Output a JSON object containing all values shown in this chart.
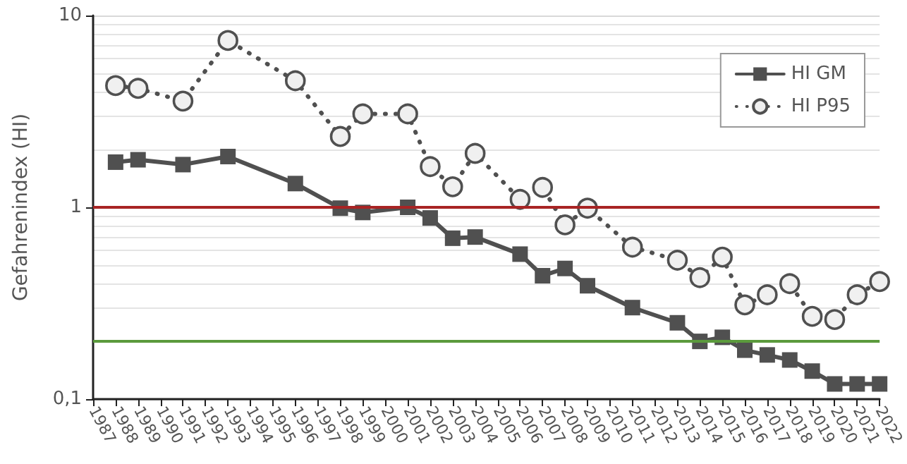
{
  "chart_data": {
    "type": "line",
    "ylabel": "Gefahrenindex (HI)",
    "log": "y",
    "ylim": [
      0.1,
      10
    ],
    "yticks": [
      {
        "value": 0.1,
        "label": "0,1"
      },
      {
        "value": 1,
        "label": "1"
      },
      {
        "value": 10,
        "label": "10"
      }
    ],
    "grid": "y",
    "legend": "top right",
    "categories": [
      "1987",
      "1988",
      "1989",
      "1990",
      "1991",
      "1992",
      "1993",
      "1994",
      "1995",
      "1996",
      "1997",
      "1998",
      "1999",
      "2000",
      "2001",
      "2002",
      "2003",
      "2004",
      "2005",
      "2006",
      "2007",
      "2008",
      "2009",
      "2010",
      "2011",
      "2012",
      "2013",
      "2014",
      "2015",
      "2016",
      "2017",
      "2018",
      "2019",
      "2020",
      "2021",
      "2022"
    ],
    "series": [
      {
        "name": "HI GM",
        "color": "#505050",
        "marker": "square",
        "line_style": "solid",
        "values": [
          null,
          1.72,
          1.77,
          null,
          1.67,
          null,
          1.84,
          null,
          null,
          1.33,
          null,
          0.99,
          0.94,
          null,
          1.0,
          0.88,
          0.69,
          0.7,
          null,
          0.57,
          0.44,
          0.48,
          0.39,
          null,
          0.3,
          null,
          0.25,
          0.2,
          0.21,
          0.18,
          0.17,
          0.16,
          0.14,
          0.12,
          0.12,
          0.12
        ]
      },
      {
        "name": "HI P95",
        "color": "#505050",
        "marker": "circle",
        "line_style": "dotted",
        "values": [
          null,
          4.31,
          4.17,
          null,
          3.58,
          null,
          7.41,
          null,
          null,
          4.57,
          null,
          2.34,
          3.07,
          null,
          3.07,
          1.63,
          1.28,
          1.91,
          null,
          1.1,
          1.27,
          0.81,
          0.99,
          null,
          0.62,
          null,
          0.53,
          0.43,
          0.55,
          0.31,
          0.35,
          0.4,
          0.27,
          0.26,
          0.35,
          0.41
        ]
      }
    ],
    "ref_lines": [
      {
        "axis": "y",
        "value": 1,
        "color": "#a82424"
      },
      {
        "axis": "y",
        "value": 0.2,
        "color": "#5b9a3c"
      }
    ]
  }
}
